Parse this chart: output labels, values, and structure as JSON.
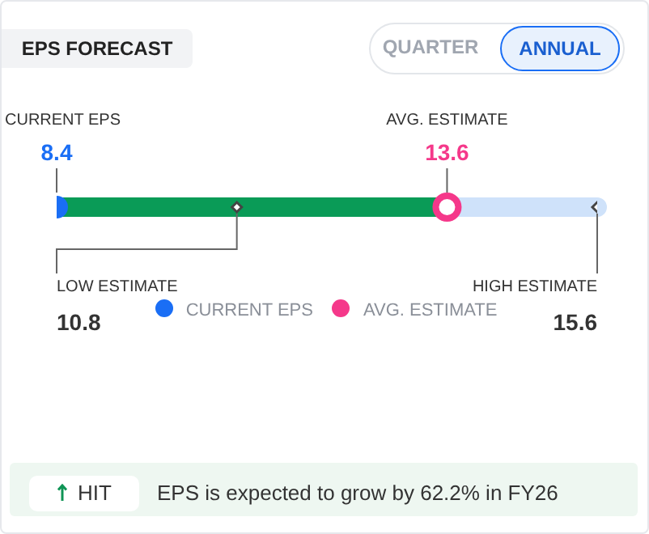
{
  "chart_data": {
    "type": "other",
    "title": "EPS FORECAST",
    "categories": [
      "CURRENT EPS",
      "LOW ESTIMATE",
      "AVG. ESTIMATE",
      "HIGH ESTIMATE"
    ],
    "series": [
      {
        "name": "CURRENT EPS",
        "color": "#1a6ef5",
        "values": [
          8.4,
          null,
          null,
          null
        ]
      },
      {
        "name": "AVG. ESTIMATE",
        "color": "#f5388a",
        "values": [
          null,
          null,
          13.6,
          null
        ]
      },
      {
        "color": "#444444",
        "values": [
          null,
          10.8,
          null,
          15.6
        ]
      }
    ],
    "data_labels": true,
    "legend": "bottom",
    "annotations": [
      "QUARTER",
      "ANNUAL",
      "HIT",
      "EPS is expected to grow by 62.2% in FY26"
    ]
  }
}
